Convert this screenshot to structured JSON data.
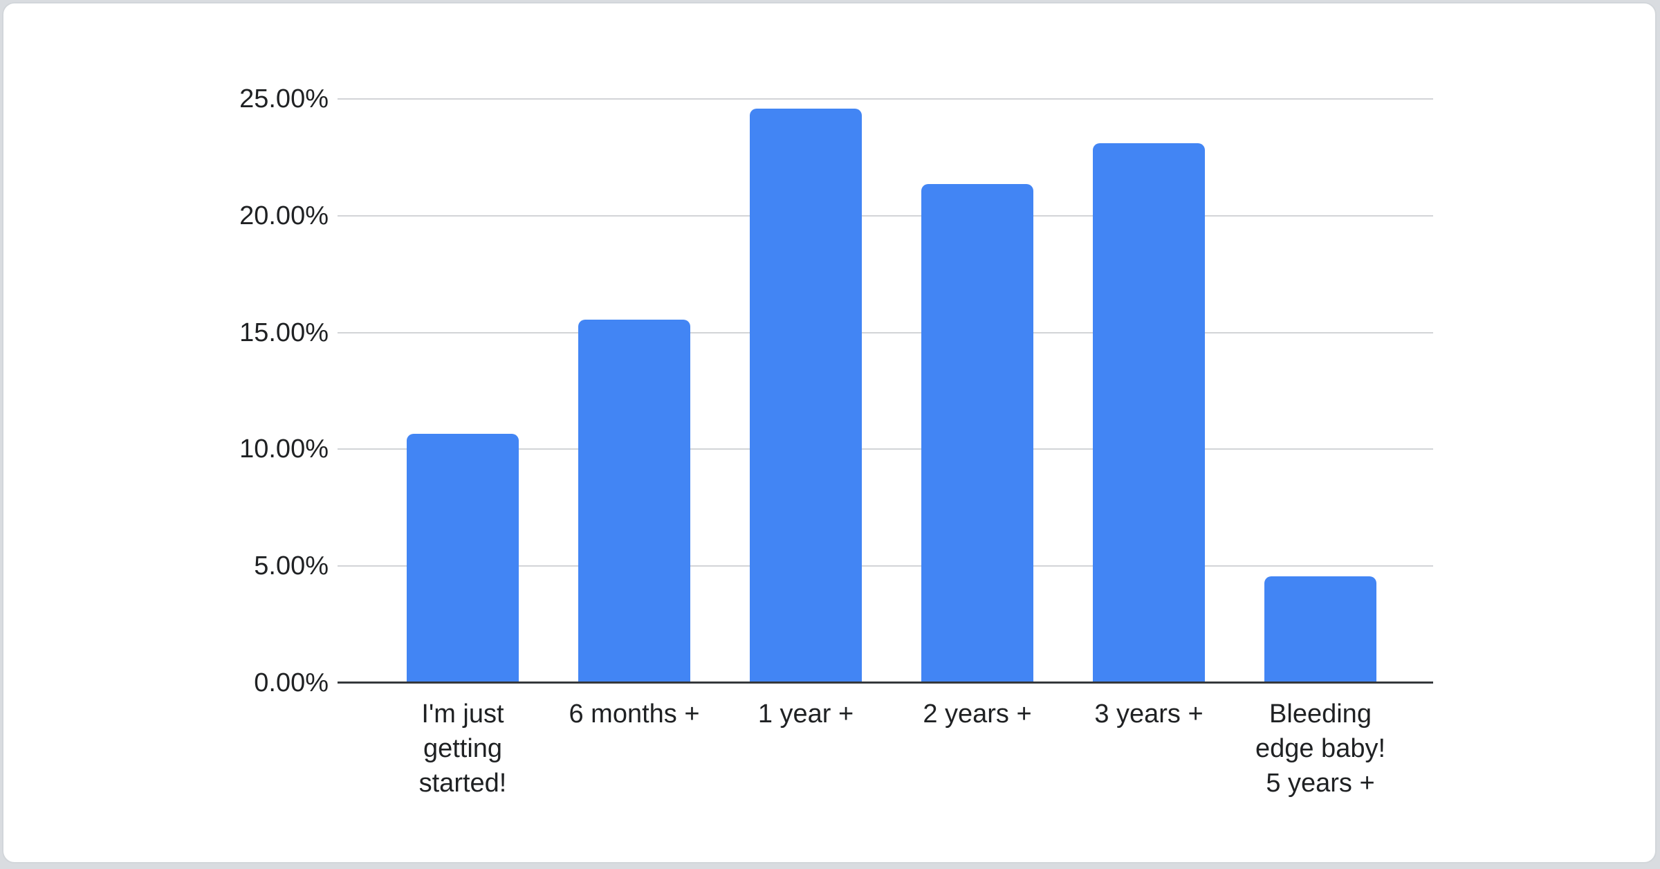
{
  "page": {
    "background_color": "#d9dce0",
    "card_background": "#ffffff",
    "card_border_color": "#d2d6da"
  },
  "chart_data": {
    "type": "bar",
    "title": "",
    "xlabel": "",
    "ylabel": "",
    "categories": [
      "I'm just\ngetting\nstarted!",
      "6 months +",
      "1 year +",
      "2 years +",
      "3 years +",
      "Bleeding\nedge baby!\n5 years +"
    ],
    "values": [
      10.65,
      15.55,
      24.6,
      21.35,
      23.1,
      4.55
    ],
    "ylim": [
      0,
      25
    ],
    "y_tick_values": [
      0,
      5,
      10,
      15,
      20,
      25
    ],
    "y_ticks": [
      "0.00%",
      "5.00%",
      "10.00%",
      "15.00%",
      "20.00%",
      "25.00%"
    ],
    "grid": true,
    "legend": "none",
    "bar_color": "#4285f4",
    "gridline_color": "#d2d4d7",
    "baseline_color": "#35383b",
    "text_color": "#1f2123"
  }
}
